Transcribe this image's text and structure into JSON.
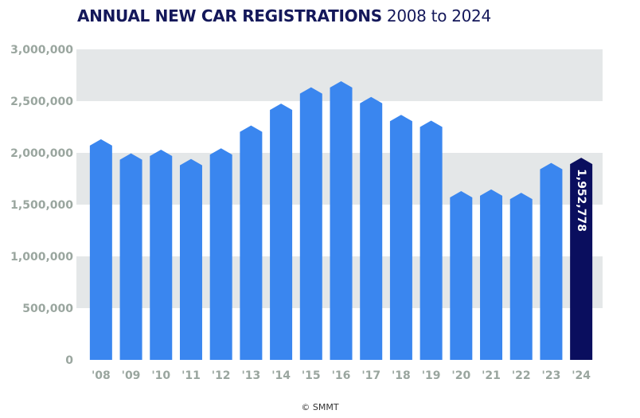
{
  "chart_data": {
    "type": "bar",
    "title": "ANNUAL NEW CAR REGISTRATIONS",
    "subtitle": "2008 to 2024",
    "xlabel": "",
    "ylabel": "",
    "categories": [
      "'08",
      "'09",
      "'10",
      "'11",
      "'12",
      "'13",
      "'14",
      "'15",
      "'16",
      "'17",
      "'18",
      "'19",
      "'20",
      "'21",
      "'22",
      "'23",
      "'24"
    ],
    "values": [
      2131795,
      1994999,
      2030846,
      1941253,
      2044609,
      2264737,
      2476435,
      2633503,
      2692786,
      2540617,
      2367147,
      2311140,
      1631064,
      1647181,
      1614063,
      1903054,
      1952778
    ],
    "ylim": [
      0,
      3000000
    ],
    "yticks": [
      0,
      500000,
      1000000,
      1500000,
      2000000,
      2500000,
      3000000
    ],
    "ytick_labels": [
      "0",
      "500,000",
      "1,000,000",
      "1,500,000",
      "2,000,000",
      "2,500,000",
      "3,000,000"
    ],
    "data_labels": [
      {
        "category": "'24",
        "text": "1,952,778"
      }
    ],
    "grid": "alternating horizontal bands",
    "legend": "none",
    "colors": {
      "bar": "#3a86ef",
      "highlight": "#0a0e5e",
      "band": "#e4e7e8",
      "tick": "#9aa69f",
      "title": "#14185a"
    }
  },
  "credit": "© SMMT"
}
